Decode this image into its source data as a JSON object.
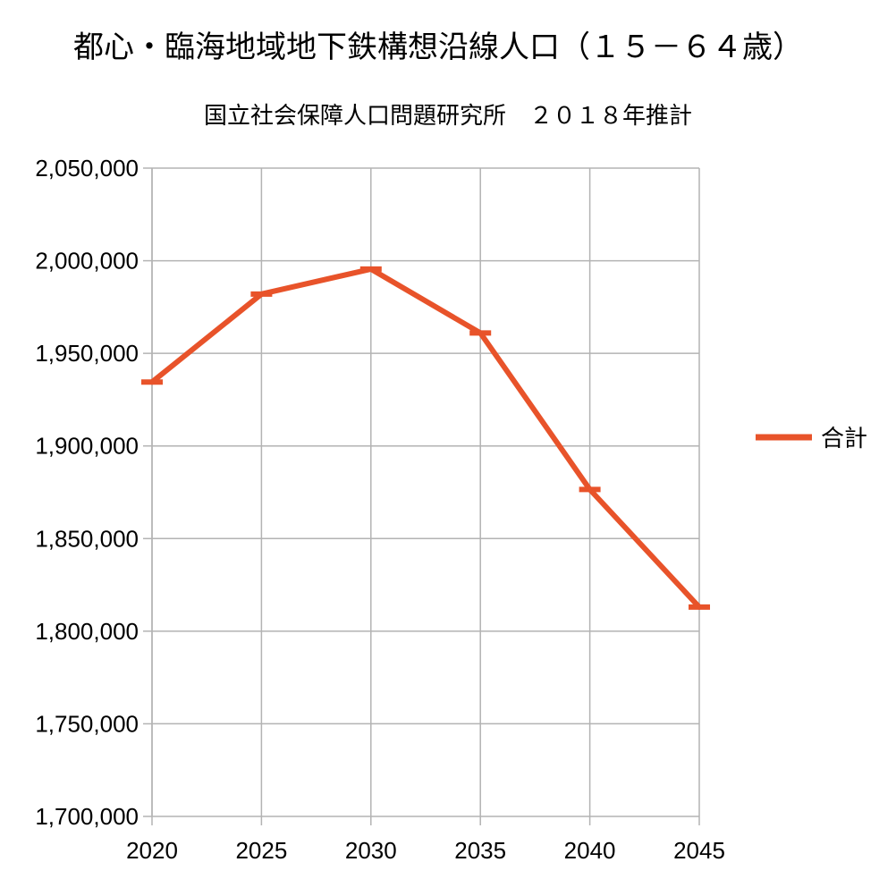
{
  "chart_data": {
    "type": "line",
    "title": "都心・臨海地域地下鉄構想沿線人口（１５－６４歳）",
    "subtitle": "国立社会保障人口問題研究所　２０１８年推計",
    "xlabel": "",
    "ylabel": "",
    "x": [
      "2020",
      "2025",
      "2030",
      "2035",
      "2040",
      "2045"
    ],
    "series": [
      {
        "name": "合計",
        "color": "#E8532A",
        "values": [
          1934500,
          1982000,
          1995500,
          1961000,
          1876500,
          1813000
        ]
      }
    ],
    "ylim": [
      1700000,
      2050000
    ],
    "ytick_step": 50000,
    "yticks": [
      "1,700,000",
      "1,750,000",
      "1,800,000",
      "1,850,000",
      "1,900,000",
      "1,950,000",
      "2,000,000",
      "2,050,000"
    ],
    "grid": true,
    "legend_position": "right"
  }
}
